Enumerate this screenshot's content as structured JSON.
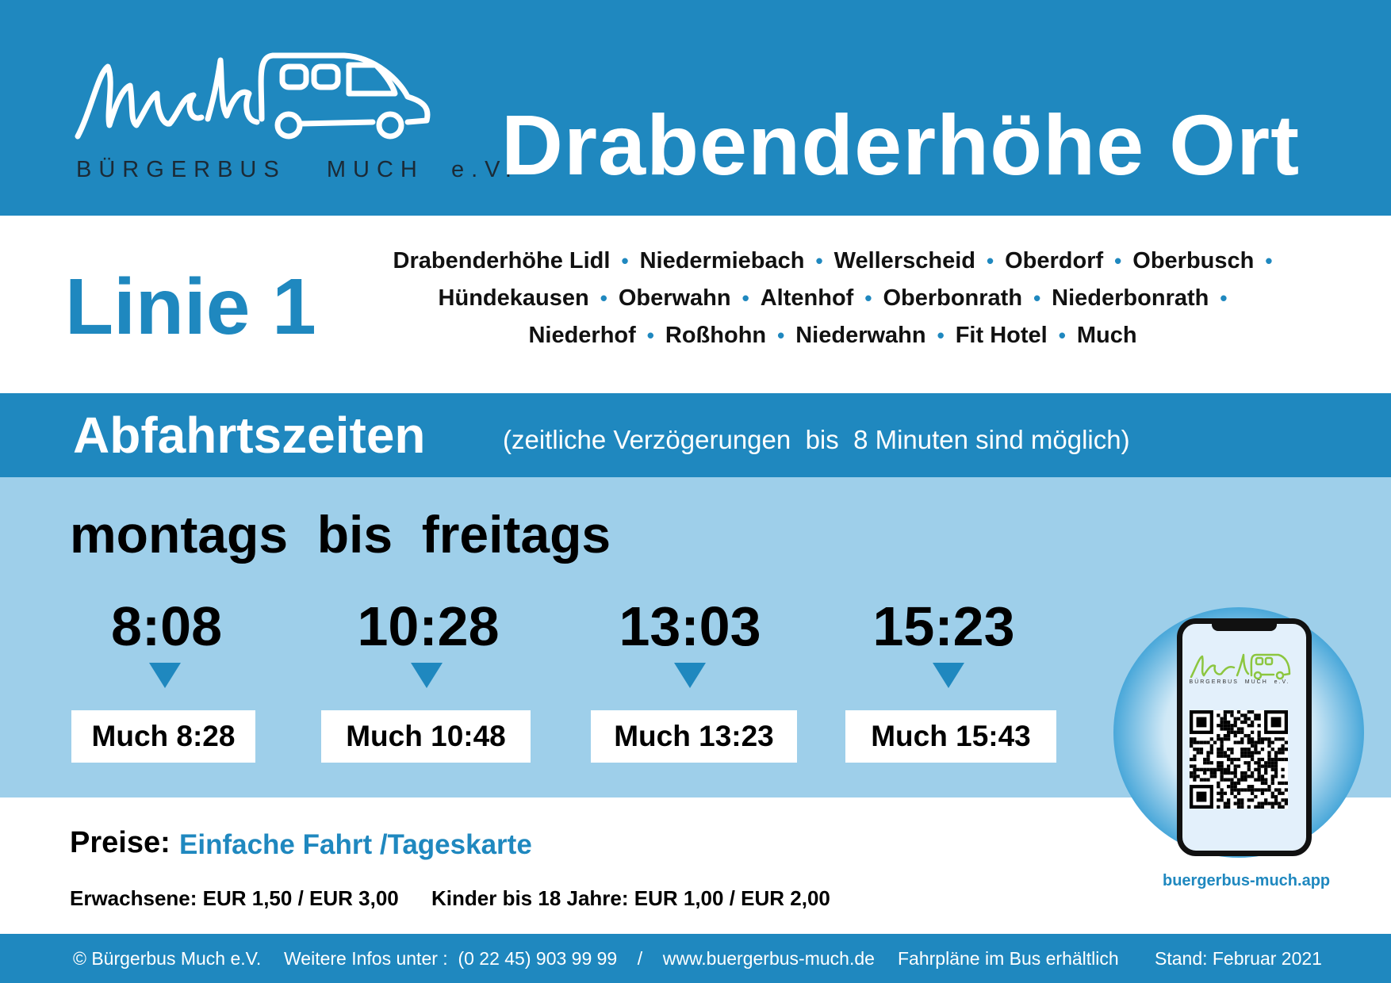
{
  "header": {
    "logo_text": "BÜRGERBUS   MUCH  e.V.",
    "station": "Drabenderhöhe Ort"
  },
  "line": {
    "title": "Linie 1",
    "stops": [
      "Drabenderhöhe Lidl",
      "Niedermiebach",
      "Wellerscheid",
      "Oberdorf",
      "Oberbusch",
      "Hündekausen",
      "Oberwahn",
      "Altenhof",
      "Oberbonrath",
      "Niederbonrath",
      "Niederhof",
      "Roßhohn",
      "Niederwahn",
      "Fit Hotel",
      "Much"
    ]
  },
  "departures": {
    "title": "Abfahrtszeiten",
    "note": "(zeitliche Verzögerungen  bis  8 Minuten sind möglich)",
    "days": "montags  bis  freitags",
    "items": [
      {
        "time": "8:08",
        "arrival": "Much 8:28"
      },
      {
        "time": "10:28",
        "arrival": "Much 10:48"
      },
      {
        "time": "13:03",
        "arrival": "Much 13:23"
      },
      {
        "time": "15:23",
        "arrival": "Much 15:43"
      }
    ]
  },
  "app": {
    "logo_text": "BÜRGERBUS  MUCH  e.V.",
    "url": "buergerbus-much.app"
  },
  "prices": {
    "label": "Preise:",
    "type": "Einfache Fahrt /Tageskarte",
    "adult": "Erwachsene: EUR 1,50 / EUR 3,00",
    "child": "Kinder bis 18 Jahre: EUR 1,00 / EUR 2,00"
  },
  "footer": {
    "copyright": "© Bürgerbus Much e.V.",
    "info": "Weitere Infos unter :  (0 22 45) 903 99 99    /    www.buergerbus-much.de",
    "schedules": "Fahrpläne im Bus erhältlich",
    "date": "Stand: Februar 2021"
  },
  "colors": {
    "brand_blue": "#1f88bf",
    "light_blue": "#9ecfea",
    "logo_green": "#8cc63f"
  }
}
